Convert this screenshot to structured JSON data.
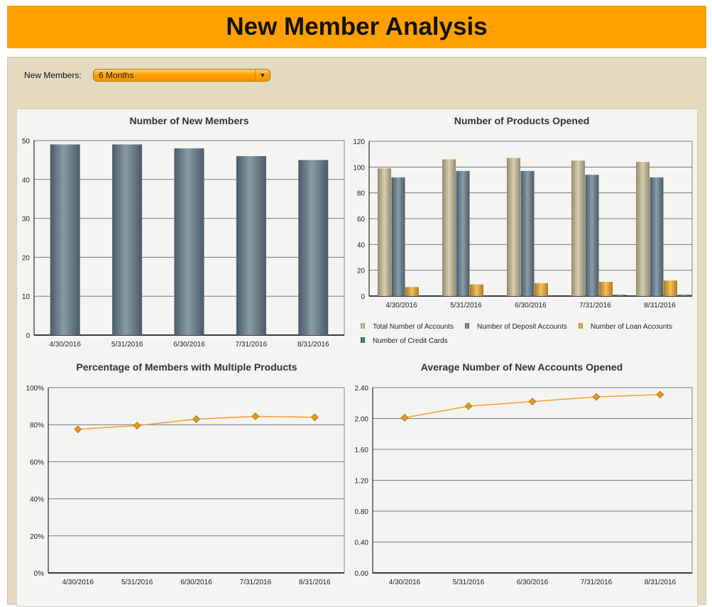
{
  "header": {
    "title": "New Member Analysis"
  },
  "filter": {
    "label": "New Members:",
    "value": "6 Months"
  },
  "chart_data": [
    {
      "type": "bar",
      "title": "Number of New Members",
      "categories": [
        "4/30/2016",
        "5/31/2016",
        "6/30/2016",
        "7/31/2016",
        "8/31/2016"
      ],
      "values": [
        49,
        49,
        48,
        46,
        45
      ],
      "ylim": [
        0,
        50
      ],
      "yticks": [
        0,
        10,
        20,
        30,
        40,
        50
      ],
      "ytick_labels": [
        "0",
        "10",
        "20",
        "30",
        "40",
        "50"
      ],
      "grid": true
    },
    {
      "type": "bar",
      "title": "Number of Products Opened",
      "categories": [
        "4/30/2016",
        "5/31/2016",
        "6/30/2016",
        "7/31/2016",
        "8/31/2016"
      ],
      "series": [
        {
          "name": "Total Number of Accounts",
          "values": [
            99,
            106,
            107,
            105,
            104
          ],
          "color": "#a89c80"
        },
        {
          "name": "Number of Deposit Accounts",
          "values": [
            92,
            97,
            97,
            94,
            92
          ],
          "color": "#5d7080"
        },
        {
          "name": "Number of Loan Accounts",
          "values": [
            7,
            9,
            10,
            11,
            12
          ],
          "color": "#d09a30"
        },
        {
          "name": "Number of Credit Cards",
          "values": [
            0,
            0,
            0,
            1,
            1
          ],
          "color": "#3d6a58"
        }
      ],
      "ylim": [
        0,
        120
      ],
      "yticks": [
        0,
        20,
        40,
        60,
        80,
        100,
        120
      ],
      "ytick_labels": [
        "0",
        "20",
        "40",
        "60",
        "80",
        "100",
        "120"
      ],
      "legend": "bottom",
      "grid": true
    },
    {
      "type": "line",
      "title": "Percentage of Members with Multiple Products",
      "categories": [
        "4/30/2016",
        "5/31/2016",
        "6/30/2016",
        "7/31/2016",
        "8/31/2016"
      ],
      "values": [
        77.5,
        79.5,
        83,
        84.5,
        84
      ],
      "ylim": [
        0,
        100
      ],
      "yticks": [
        0,
        20,
        40,
        60,
        80,
        100
      ],
      "ytick_labels": [
        "0%",
        "20%",
        "40%",
        "60%",
        "80%",
        "100%"
      ],
      "color": "#f0a030",
      "grid": true
    },
    {
      "type": "line",
      "title": "Average Number of New Accounts Opened",
      "categories": [
        "4/30/2016",
        "5/31/2016",
        "6/30/2016",
        "7/31/2016",
        "8/31/2016"
      ],
      "values": [
        2.01,
        2.16,
        2.22,
        2.28,
        2.31
      ],
      "ylim": [
        0,
        2.4
      ],
      "yticks": [
        0,
        0.4,
        0.8,
        1.2,
        1.6,
        2.0,
        2.4
      ],
      "ytick_labels": [
        "0.00",
        "0.40",
        "0.80",
        "1.20",
        "1.60",
        "2.00",
        "2.40"
      ],
      "color": "#f0a030",
      "grid": true
    }
  ]
}
